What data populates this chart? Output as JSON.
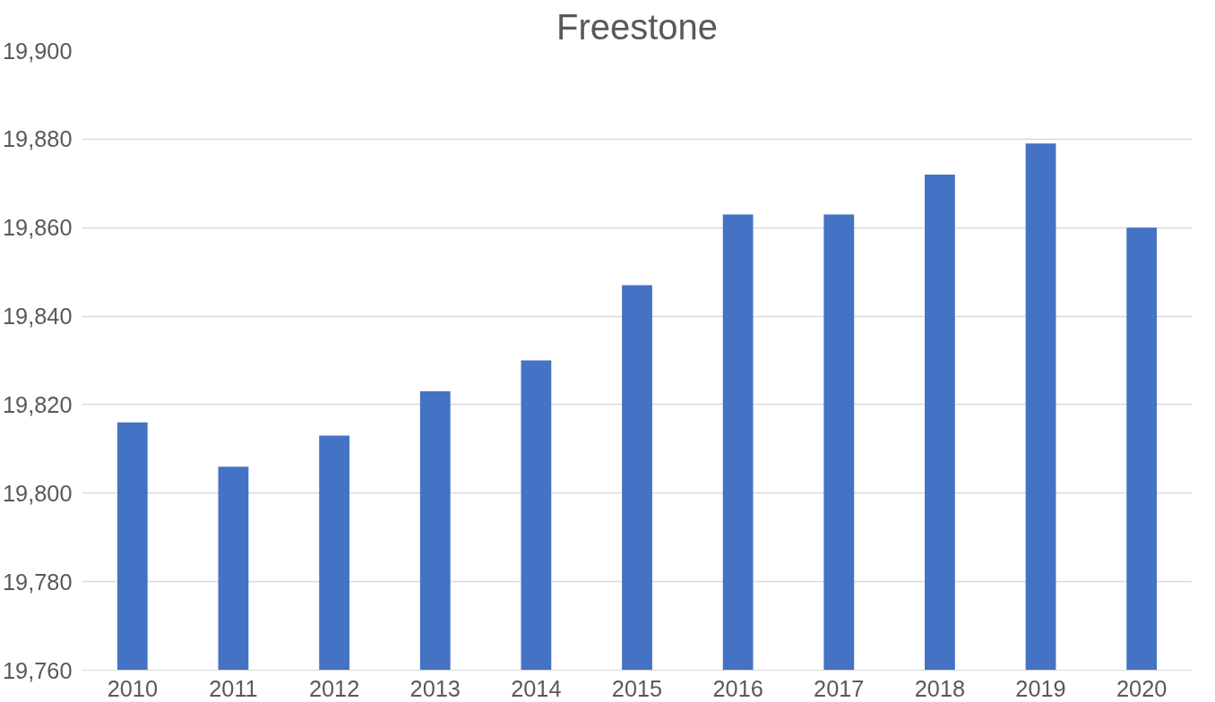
{
  "chart_data": {
    "type": "bar",
    "title": "Freestone",
    "categories": [
      "2010",
      "2011",
      "2012",
      "2013",
      "2014",
      "2015",
      "2016",
      "2017",
      "2018",
      "2019",
      "2020"
    ],
    "values": [
      19816,
      19806,
      19813,
      19823,
      19830,
      19847,
      19863,
      19863,
      19872,
      19879,
      19860
    ],
    "color": "#4472c4",
    "ylim": [
      19760,
      19900
    ],
    "yticks": [
      {
        "value": 19760,
        "label": "19,760"
      },
      {
        "value": 19780,
        "label": "19,780"
      },
      {
        "value": 19800,
        "label": "19,800"
      },
      {
        "value": 19820,
        "label": "19,820"
      },
      {
        "value": 19840,
        "label": "19,840"
      },
      {
        "value": 19860,
        "label": "19,860"
      },
      {
        "value": 19880,
        "label": "19,880"
      },
      {
        "value": 19900,
        "label": "19,900"
      }
    ],
    "grid": "y"
  }
}
